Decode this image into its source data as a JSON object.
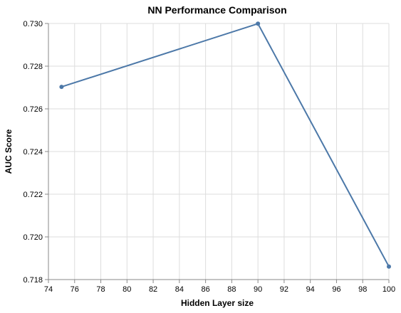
{
  "chart_data": {
    "type": "line",
    "title": "NN Performance Comparison",
    "xlabel": "Hidden Layer size",
    "ylabel": "AUC Score",
    "xlim": [
      74,
      100
    ],
    "ylim": [
      0.718,
      0.73
    ],
    "x_ticks": [
      "74",
      "76",
      "78",
      "80",
      "82",
      "84",
      "86",
      "88",
      "90",
      "92",
      "94",
      "96",
      "98",
      "100"
    ],
    "y_ticks": [
      "0.718",
      "0.720",
      "0.722",
      "0.724",
      "0.726",
      "0.728",
      "0.730"
    ],
    "grid": true,
    "series": [
      {
        "x": [
          75,
          90,
          100
        ],
        "y": [
          0.72703,
          0.72999,
          0.71861
        ],
        "color": "#4c78a8"
      }
    ]
  }
}
